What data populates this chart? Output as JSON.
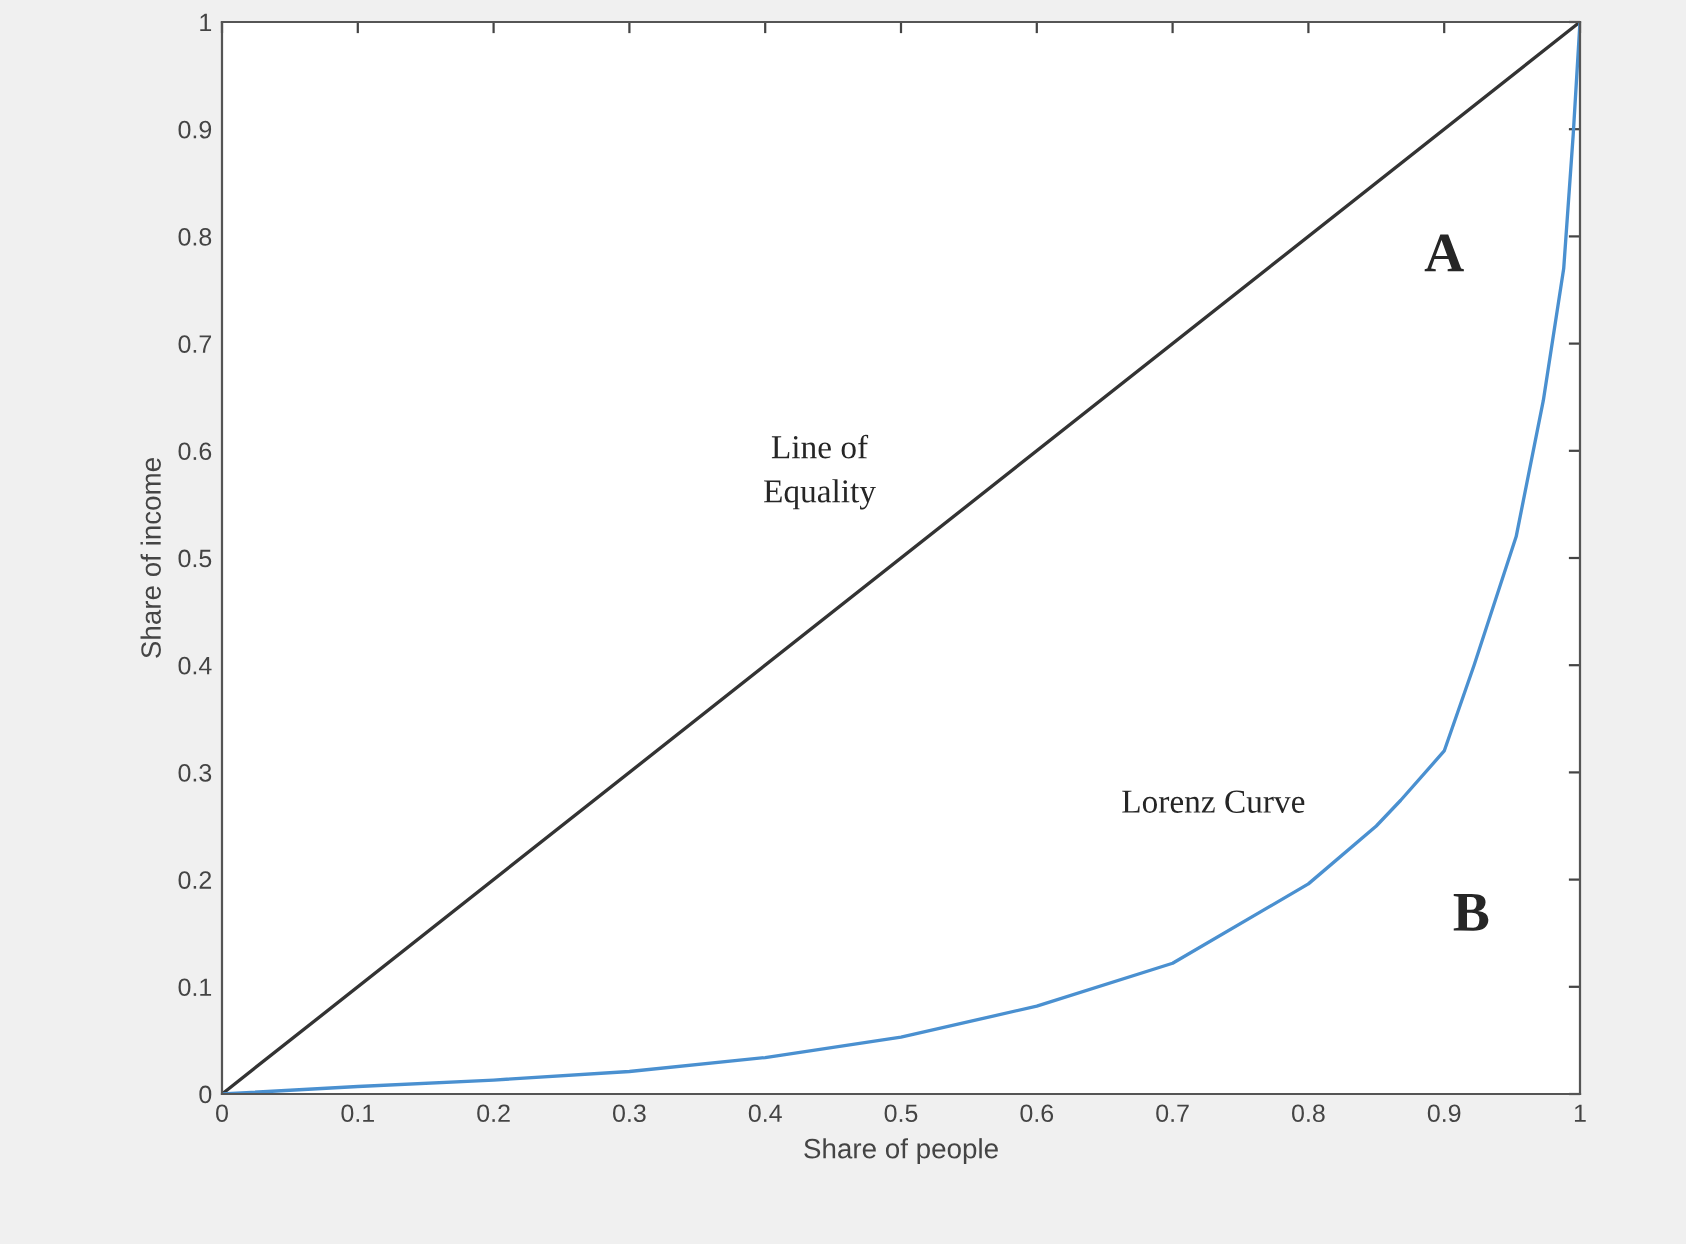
{
  "chart_data": {
    "type": "line",
    "xlabel": "Share of people",
    "ylabel": "Share of income",
    "xlim": [
      0,
      1
    ],
    "ylim": [
      0,
      1
    ],
    "xticks": [
      0,
      0.1,
      0.2,
      0.3,
      0.4,
      0.5,
      0.6,
      0.7,
      0.8,
      0.9,
      1
    ],
    "yticks": [
      0,
      0.1,
      0.2,
      0.3,
      0.4,
      0.5,
      0.6,
      0.7,
      0.8,
      0.9,
      1
    ],
    "grid": false,
    "marker": "none",
    "line_style": "solid",
    "series": [
      {
        "color": "#333333",
        "x": [
          0,
          1
        ],
        "values": [
          0,
          1
        ]
      },
      {
        "color": "#4a90d0",
        "x": [
          0,
          0.1,
          0.2,
          0.3,
          0.4,
          0.5,
          0.6,
          0.7,
          0.8,
          0.85,
          0.868,
          0.9,
          0.922,
          0.953,
          0.973,
          0.988,
          0.995,
          1
        ],
        "values": [
          0,
          0.007,
          0.013,
          0.021,
          0.034,
          0.053,
          0.082,
          0.122,
          0.196,
          0.25,
          0.274,
          0.32,
          0.4,
          0.52,
          0.647,
          0.77,
          0.895,
          1
        ]
      }
    ],
    "annotations": [
      "Line of\nEquality",
      "Lorenz Curve",
      "A",
      "B"
    ]
  }
}
